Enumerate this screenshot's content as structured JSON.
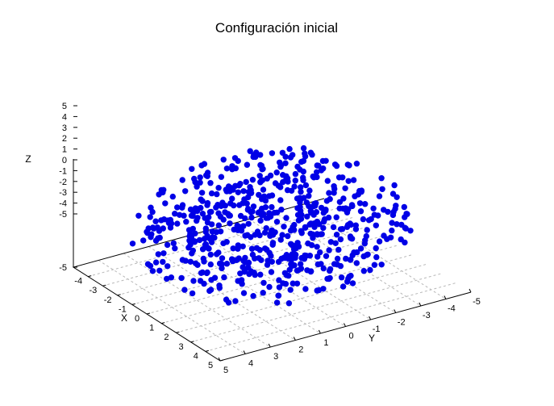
{
  "chart_data": {
    "type": "scatter",
    "title": "Configuración inicial",
    "xlabel": "X",
    "ylabel": "Y",
    "zlabel": "Z",
    "xlim": [
      -5,
      5
    ],
    "ylim": [
      -5,
      5
    ],
    "zlim": [
      -5,
      5
    ],
    "x_ticks": [
      "-4",
      "-3",
      "-2",
      "-1",
      "0",
      "1",
      "2",
      "3",
      "4",
      "5"
    ],
    "y_ticks": [
      "-5",
      "-4",
      "-3",
      "-2",
      "-1",
      "0",
      "1",
      "2",
      "3",
      "4",
      "5"
    ],
    "z_ticks": [
      "5",
      "4",
      "3",
      "2",
      "1",
      "0",
      "-1",
      "-2",
      "-3",
      "-4",
      "-5"
    ],
    "z_floor_tick": "-5",
    "grid": true,
    "marker_color": "#0000e6",
    "n_points": 640,
    "distribution": "uniform random positions in a ball of radius 5"
  }
}
